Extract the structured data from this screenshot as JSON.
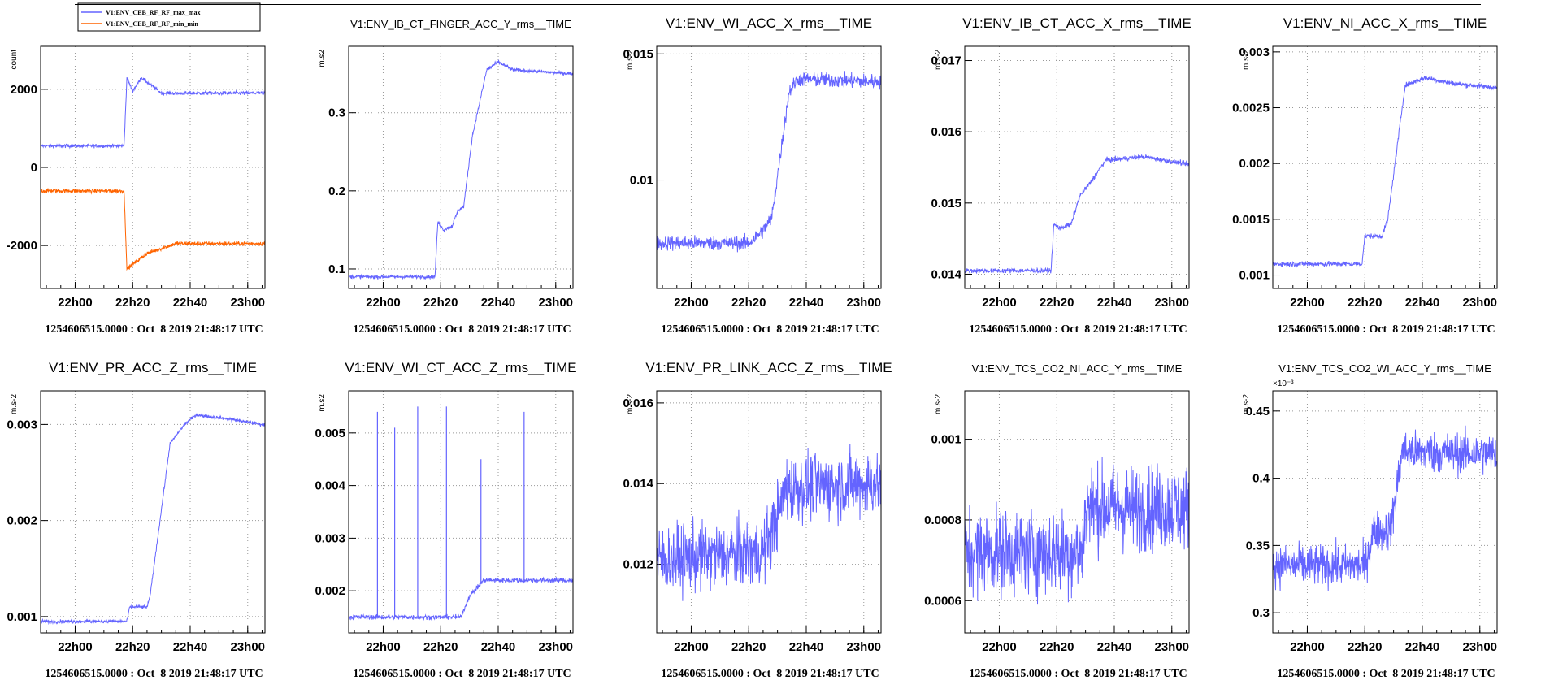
{
  "line_color": "#6464ff",
  "second_color": "#ff6400",
  "footer": "1254606515.0000 : Oct  8 2019 21:48:17 UTC",
  "chart_data": [
    {
      "type": "line",
      "title": "",
      "ylabel": "count",
      "x_range": [
        "21:48",
        "23:06"
      ],
      "xticks": [
        "22h00",
        "22h20",
        "22h40",
        "23h00"
      ],
      "yticks": [
        {
          "v": 2000,
          "label": "2000"
        },
        {
          "v": 0,
          "label": "0"
        },
        {
          "v": -2000,
          "label": "-2000"
        }
      ],
      "ylim": [
        -3100,
        3100
      ],
      "legend": [
        "V1:ENV_CEB_RF_RF_max_max",
        "V1:ENV_CEB_RF_RF_min_min"
      ],
      "series": [
        {
          "name": "V1:ENV_CEB_RF_RF_max_max",
          "color": "#6464ff",
          "x": [
            "21:48",
            "22:17",
            "22:18",
            "22:20",
            "22:23",
            "22:30",
            "23:05"
          ],
          "y": [
            550,
            550,
            2300,
            1950,
            2300,
            1900,
            1900
          ],
          "noise": 40
        },
        {
          "name": "V1:ENV_CEB_RF_RF_min_min",
          "color": "#ff6400",
          "x": [
            "21:48",
            "22:17",
            "22:18",
            "22:25",
            "22:35",
            "23:05"
          ],
          "y": [
            -600,
            -600,
            -2600,
            -2200,
            -1950,
            -1950
          ],
          "noise": 45
        }
      ]
    },
    {
      "type": "line",
      "title": "V1:ENV_IB_CT_FINGER_ACC_Y_rms__TIME",
      "ylabel": "m.s2",
      "x_range": [
        "21:48",
        "23:06"
      ],
      "xticks": [
        "22h00",
        "22h20",
        "22h40",
        "23h00"
      ],
      "yticks": [
        {
          "v": 0.1,
          "label": "0.1"
        },
        {
          "v": 0.2,
          "label": "0.2"
        },
        {
          "v": 0.3,
          "label": "0.3"
        }
      ],
      "ylim": [
        0.075,
        0.385
      ],
      "series": [
        {
          "color": "#6464ff",
          "x": [
            "21:48",
            "22:18",
            "22:19",
            "22:21",
            "22:24",
            "22:26",
            "22:28",
            "22:31",
            "22:36",
            "22:40",
            "22:45",
            "23:05"
          ],
          "y": [
            0.09,
            0.09,
            0.16,
            0.15,
            0.155,
            0.175,
            0.18,
            0.27,
            0.355,
            0.365,
            0.355,
            0.35
          ],
          "noise": 0.002
        }
      ]
    },
    {
      "type": "line",
      "title": "V1:ENV_WI_ACC_X_rms__TIME",
      "ylabel": "m.s-2",
      "x_range": [
        "21:48",
        "23:06"
      ],
      "xticks": [
        "22h00",
        "22h20",
        "22h40",
        "23h00"
      ],
      "yticks": [
        {
          "v": 0.01,
          "label": "0.01"
        },
        {
          "v": 0.015,
          "label": "0.015"
        }
      ],
      "ylim": [
        0.0057,
        0.0153
      ],
      "series": [
        {
          "color": "#6464ff",
          "x": [
            "21:48",
            "22:20",
            "22:25",
            "22:28",
            "22:34",
            "22:37",
            "23:05"
          ],
          "y": [
            0.0075,
            0.0075,
            0.008,
            0.0085,
            0.0135,
            0.014,
            0.0139
          ],
          "noise": 0.00025
        }
      ]
    },
    {
      "type": "line",
      "title": "V1:ENV_IB_CT_ACC_X_rms__TIME",
      "ylabel": "m.s-2",
      "x_range": [
        "21:48",
        "23:06"
      ],
      "xticks": [
        "22h00",
        "22h20",
        "22h40",
        "23h00"
      ],
      "yticks": [
        {
          "v": 0.014,
          "label": "0.014"
        },
        {
          "v": 0.015,
          "label": "0.015"
        },
        {
          "v": 0.016,
          "label": "0.016"
        },
        {
          "v": 0.017,
          "label": "0.017"
        }
      ],
      "ylim": [
        0.0138,
        0.0172
      ],
      "series": [
        {
          "color": "#6464ff",
          "x": [
            "21:48",
            "22:18",
            "22:19",
            "22:21",
            "22:25",
            "22:28",
            "22:31",
            "22:37",
            "22:50",
            "23:05"
          ],
          "y": [
            0.01405,
            0.01405,
            0.0147,
            0.01465,
            0.0147,
            0.0151,
            0.01525,
            0.0156,
            0.01565,
            0.01555
          ],
          "noise": 3e-05
        }
      ]
    },
    {
      "type": "line",
      "title": "V1:ENV_NI_ACC_X_rms__TIME",
      "ylabel": "m.s-2",
      "x_range": [
        "21:48",
        "23:06"
      ],
      "xticks": [
        "22h00",
        "22h20",
        "22h40",
        "23h00"
      ],
      "yticks": [
        {
          "v": 0.001,
          "label": "0.001"
        },
        {
          "v": 0.0015,
          "label": "0.0015"
        },
        {
          "v": 0.002,
          "label": "0.002"
        },
        {
          "v": 0.0025,
          "label": "0.0025"
        },
        {
          "v": 0.003,
          "label": "0.003"
        }
      ],
      "ylim": [
        0.00088,
        0.00305
      ],
      "series": [
        {
          "color": "#6464ff",
          "x": [
            "21:48",
            "22:19",
            "22:20",
            "22:26",
            "22:28",
            "22:34",
            "22:41",
            "22:50",
            "23:05"
          ],
          "y": [
            0.0011,
            0.0011,
            0.00135,
            0.00135,
            0.0015,
            0.0027,
            0.00277,
            0.00272,
            0.00268
          ],
          "noise": 2e-05
        }
      ]
    },
    {
      "type": "line",
      "title": "V1:ENV_PR_ACC_Z_rms__TIME",
      "ylabel": "m.s-2",
      "x_range": [
        "21:48",
        "23:06"
      ],
      "xticks": [
        "22h00",
        "22h20",
        "22h40",
        "23h00"
      ],
      "yticks": [
        {
          "v": 0.001,
          "label": "0.001"
        },
        {
          "v": 0.002,
          "label": "0.002"
        },
        {
          "v": 0.003,
          "label": "0.003"
        }
      ],
      "ylim": [
        0.00083,
        0.00335
      ],
      "series": [
        {
          "color": "#6464ff",
          "x": [
            "21:48",
            "22:18",
            "22:19",
            "22:25",
            "22:26",
            "22:33",
            "22:38",
            "22:42",
            "22:55",
            "23:05"
          ],
          "y": [
            0.00095,
            0.00095,
            0.0011,
            0.0011,
            0.0012,
            0.0028,
            0.003,
            0.0031,
            0.00305,
            0.003
          ],
          "noise": 1.5e-05
        }
      ]
    },
    {
      "type": "line",
      "title": "V1:ENV_WI_CT_ACC_Z_rms__TIME",
      "ylabel": "m.s2",
      "x_range": [
        "21:48",
        "23:06"
      ],
      "xticks": [
        "22h00",
        "22h20",
        "22h40",
        "23h00"
      ],
      "yticks": [
        {
          "v": 0.002,
          "label": "0.002"
        },
        {
          "v": 0.003,
          "label": "0.003"
        },
        {
          "v": 0.004,
          "label": "0.004"
        },
        {
          "v": 0.005,
          "label": "0.005"
        }
      ],
      "ylim": [
        0.0012,
        0.0058
      ],
      "series": [
        {
          "color": "#6464ff",
          "x": [
            "21:48",
            "22:27",
            "22:30",
            "22:35",
            "23:05"
          ],
          "y": [
            0.0015,
            0.0015,
            0.0019,
            0.0022,
            0.0022
          ],
          "noise": 4e-05,
          "spikes": [
            {
              "x": "21:58",
              "y": 0.0054
            },
            {
              "x": "22:04",
              "y": 0.0051
            },
            {
              "x": "22:12",
              "y": 0.0055
            },
            {
              "x": "22:22",
              "y": 0.0055
            },
            {
              "x": "22:34",
              "y": 0.0045
            },
            {
              "x": "22:49",
              "y": 0.0054
            }
          ]
        }
      ]
    },
    {
      "type": "line",
      "title": "V1:ENV_PR_LINK_ACC_Z_rms__TIME",
      "ylabel": "m.s-2",
      "x_range": [
        "21:48",
        "23:06"
      ],
      "xticks": [
        "22h00",
        "22h20",
        "22h40",
        "23h00"
      ],
      "yticks": [
        {
          "v": 0.012,
          "label": "0.012"
        },
        {
          "v": 0.014,
          "label": "0.014"
        },
        {
          "v": 0.016,
          "label": "0.016"
        }
      ],
      "ylim": [
        0.0103,
        0.0163
      ],
      "series": [
        {
          "color": "#6464ff",
          "x": [
            "21:48",
            "22:25",
            "22:30",
            "22:33",
            "23:05"
          ],
          "y": [
            0.0121,
            0.0123,
            0.0132,
            0.0139,
            0.014
          ],
          "noise": 0.0007
        }
      ]
    },
    {
      "type": "line",
      "title": "V1:ENV_TCS_CO2_NI_ACC_Y_rms__TIME",
      "ylabel": "m.s-2",
      "x_range": [
        "21:48",
        "23:06"
      ],
      "xticks": [
        "22h00",
        "22h20",
        "22h40",
        "23h00"
      ],
      "yticks": [
        {
          "v": 0.0006,
          "label": "0.0006"
        },
        {
          "v": 0.0008,
          "label": "0.0008"
        },
        {
          "v": 0.001,
          "label": "0.001"
        }
      ],
      "ylim": [
        0.00052,
        0.00112
      ],
      "series": [
        {
          "color": "#6464ff",
          "x": [
            "21:48",
            "22:29",
            "22:30",
            "23:05"
          ],
          "y": [
            0.00072,
            0.00072,
            0.00083,
            0.00083
          ],
          "noise": 9e-05
        }
      ]
    },
    {
      "type": "line",
      "title": "V1:ENV_TCS_CO2_WI_ACC_Y_rms__TIME",
      "ylabel": "m.s-2",
      "exponent": "×10⁻³",
      "x_range": [
        "21:48",
        "23:06"
      ],
      "xticks": [
        "22h00",
        "22h20",
        "22h40",
        "23h00"
      ],
      "yticks": [
        {
          "v": 0.3,
          "label": "0.3"
        },
        {
          "v": 0.35,
          "label": "0.35"
        },
        {
          "v": 0.4,
          "label": "0.4"
        },
        {
          "v": 0.45,
          "label": "0.45"
        }
      ],
      "ylim": [
        0.285,
        0.465
      ],
      "series": [
        {
          "color": "#6464ff",
          "x": [
            "21:48",
            "22:20",
            "22:23",
            "22:29",
            "22:33",
            "23:05"
          ],
          "y": [
            0.335,
            0.335,
            0.36,
            0.362,
            0.42,
            0.418
          ],
          "noise": 0.013
        }
      ]
    }
  ]
}
